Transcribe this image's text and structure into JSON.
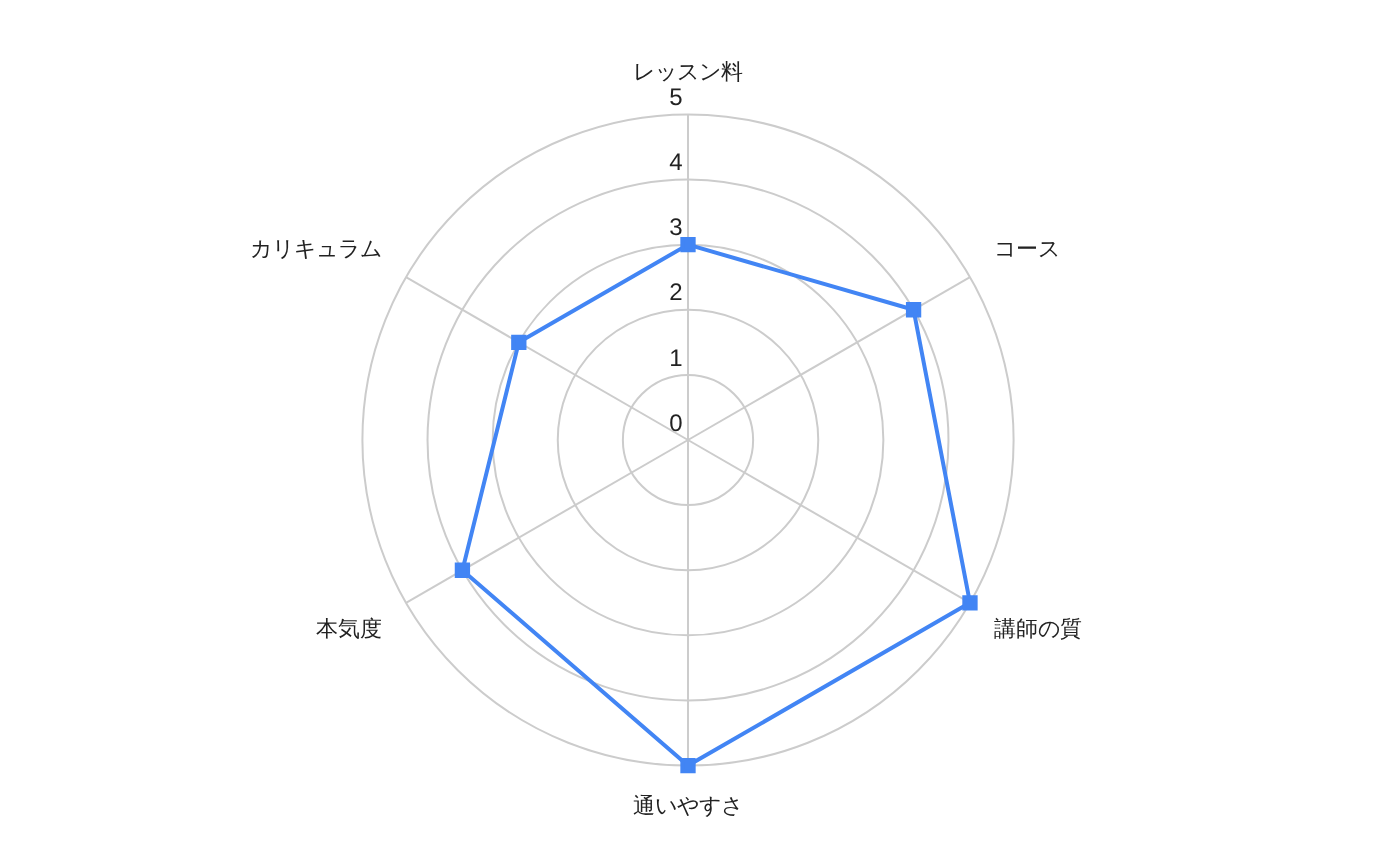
{
  "chart_data": {
    "type": "radar",
    "categories": [
      "レッスン料",
      "コース",
      "講師の質",
      "通いやすさ",
      "本気度",
      "カリキュラム"
    ],
    "series": [
      {
        "color": "#4285f4",
        "values": [
          3,
          4,
          5,
          5,
          4,
          3
        ]
      }
    ],
    "ylim": [
      0,
      5
    ],
    "yticks": [
      0,
      1,
      2,
      3,
      4,
      5
    ],
    "grid": true,
    "legend": false,
    "marker": "square",
    "line_style": "solid"
  }
}
